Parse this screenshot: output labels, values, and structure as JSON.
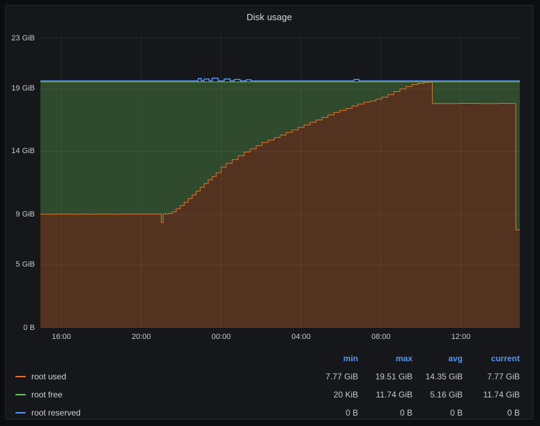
{
  "panel": {
    "title": "Disk usage"
  },
  "chart_data": {
    "type": "area",
    "title": "Disk usage",
    "stacked": true,
    "x_unit": "time",
    "y_unit": "bytes (IEC)",
    "x_range": [
      0,
      24
    ],
    "y_range": [
      0,
      23.25
    ],
    "total_gib": 19.51,
    "grid_color": "rgba(204,204,220,0.08)",
    "background": "#15171a",
    "y_ticks": [
      [
        0,
        "0 B"
      ],
      [
        5,
        "5 GiB"
      ],
      [
        9,
        "9 GiB"
      ],
      [
        14,
        "14 GiB"
      ],
      [
        19,
        "19 GiB"
      ],
      [
        23,
        "23 GiB"
      ]
    ],
    "x_ticks": [
      [
        1.05,
        "16:00"
      ],
      [
        5.05,
        "20:00"
      ],
      [
        9.05,
        "00:00"
      ],
      [
        13.05,
        "04:00"
      ],
      [
        17.05,
        "08:00"
      ],
      [
        21.05,
        "12:00"
      ]
    ],
    "series": [
      {
        "name": "root used",
        "color": "#e0752d",
        "fill": "#53321f",
        "points": [
          [
            0,
            9.02
          ],
          [
            0.5,
            9.02
          ],
          [
            1,
            9.03
          ],
          [
            1.5,
            9.02
          ],
          [
            2,
            9.03
          ],
          [
            2.5,
            9.02
          ],
          [
            3,
            9.03
          ],
          [
            3.5,
            9.02
          ],
          [
            4,
            9.03
          ],
          [
            4.5,
            9.03
          ],
          [
            5,
            9.03
          ],
          [
            5.5,
            9.03
          ],
          [
            6,
            9.04
          ],
          [
            6.05,
            8.35
          ],
          [
            6.15,
            9.05
          ],
          [
            6.4,
            9.08
          ],
          [
            6.6,
            9.2
          ],
          [
            6.8,
            9.45
          ],
          [
            7,
            9.7
          ],
          [
            7.2,
            9.95
          ],
          [
            7.4,
            10.25
          ],
          [
            7.6,
            10.55
          ],
          [
            7.8,
            10.85
          ],
          [
            8,
            11.15
          ],
          [
            8.2,
            11.45
          ],
          [
            8.4,
            11.75
          ],
          [
            8.6,
            12.0
          ],
          [
            8.8,
            12.3
          ],
          [
            9.05,
            12.75
          ],
          [
            9.3,
            13.05
          ],
          [
            9.6,
            13.35
          ],
          [
            9.9,
            13.65
          ],
          [
            10.2,
            13.95
          ],
          [
            10.5,
            14.2
          ],
          [
            10.8,
            14.45
          ],
          [
            11.1,
            14.7
          ],
          [
            11.4,
            14.9
          ],
          [
            11.7,
            15.1
          ],
          [
            12,
            15.3
          ],
          [
            12.3,
            15.5
          ],
          [
            12.6,
            15.7
          ],
          [
            12.9,
            15.9
          ],
          [
            13.2,
            16.1
          ],
          [
            13.5,
            16.3
          ],
          [
            13.8,
            16.5
          ],
          [
            14.1,
            16.7
          ],
          [
            14.4,
            16.9
          ],
          [
            14.7,
            17.1
          ],
          [
            15,
            17.25
          ],
          [
            15.3,
            17.4
          ],
          [
            15.6,
            17.6
          ],
          [
            15.9,
            17.75
          ],
          [
            16.2,
            17.9
          ],
          [
            16.5,
            18.0
          ],
          [
            16.8,
            18.15
          ],
          [
            17.1,
            18.3
          ],
          [
            17.4,
            18.5
          ],
          [
            17.7,
            18.75
          ],
          [
            18,
            18.95
          ],
          [
            18.3,
            19.15
          ],
          [
            18.6,
            19.3
          ],
          [
            18.9,
            19.4
          ],
          [
            19.2,
            19.47
          ],
          [
            19.5,
            19.5
          ],
          [
            19.62,
            17.8
          ],
          [
            20,
            17.8
          ],
          [
            21,
            17.81
          ],
          [
            22,
            17.8
          ],
          [
            23,
            17.81
          ],
          [
            23.55,
            17.8
          ],
          [
            23.8,
            7.77
          ],
          [
            24,
            7.77
          ]
        ]
      },
      {
        "name": "root free",
        "color": "#73bf69",
        "fill": "#2f4a2c",
        "points": []
      },
      {
        "name": "root reserved",
        "color": "#5794f2",
        "points": [
          [
            0,
            19.51
          ],
          [
            7.8,
            19.51
          ],
          [
            7.9,
            19.7
          ],
          [
            8.05,
            19.51
          ],
          [
            8.2,
            19.66
          ],
          [
            8.45,
            19.51
          ],
          [
            8.6,
            19.72
          ],
          [
            8.9,
            19.51
          ],
          [
            9.2,
            19.66
          ],
          [
            9.5,
            19.51
          ],
          [
            9.7,
            19.62
          ],
          [
            10,
            19.51
          ],
          [
            10.3,
            19.6
          ],
          [
            10.55,
            19.51
          ],
          [
            15.6,
            19.51
          ],
          [
            15.7,
            19.62
          ],
          [
            15.95,
            19.51
          ],
          [
            24,
            19.51
          ]
        ]
      }
    ]
  },
  "legend": {
    "columns": [
      "min",
      "max",
      "avg",
      "current"
    ],
    "rows": [
      {
        "name": "root used",
        "color": "#e0752d",
        "min": "7.77 GiB",
        "max": "19.51 GiB",
        "avg": "14.35 GiB",
        "current": "7.77 GiB"
      },
      {
        "name": "root free",
        "color": "#73bf69",
        "min": "20 KiB",
        "max": "11.74 GiB",
        "avg": "5.16 GiB",
        "current": "11.74 GiB"
      },
      {
        "name": "root reserved",
        "color": "#5794f2",
        "min": "0 B",
        "max": "0 B",
        "avg": "0 B",
        "current": "0 B"
      }
    ]
  }
}
